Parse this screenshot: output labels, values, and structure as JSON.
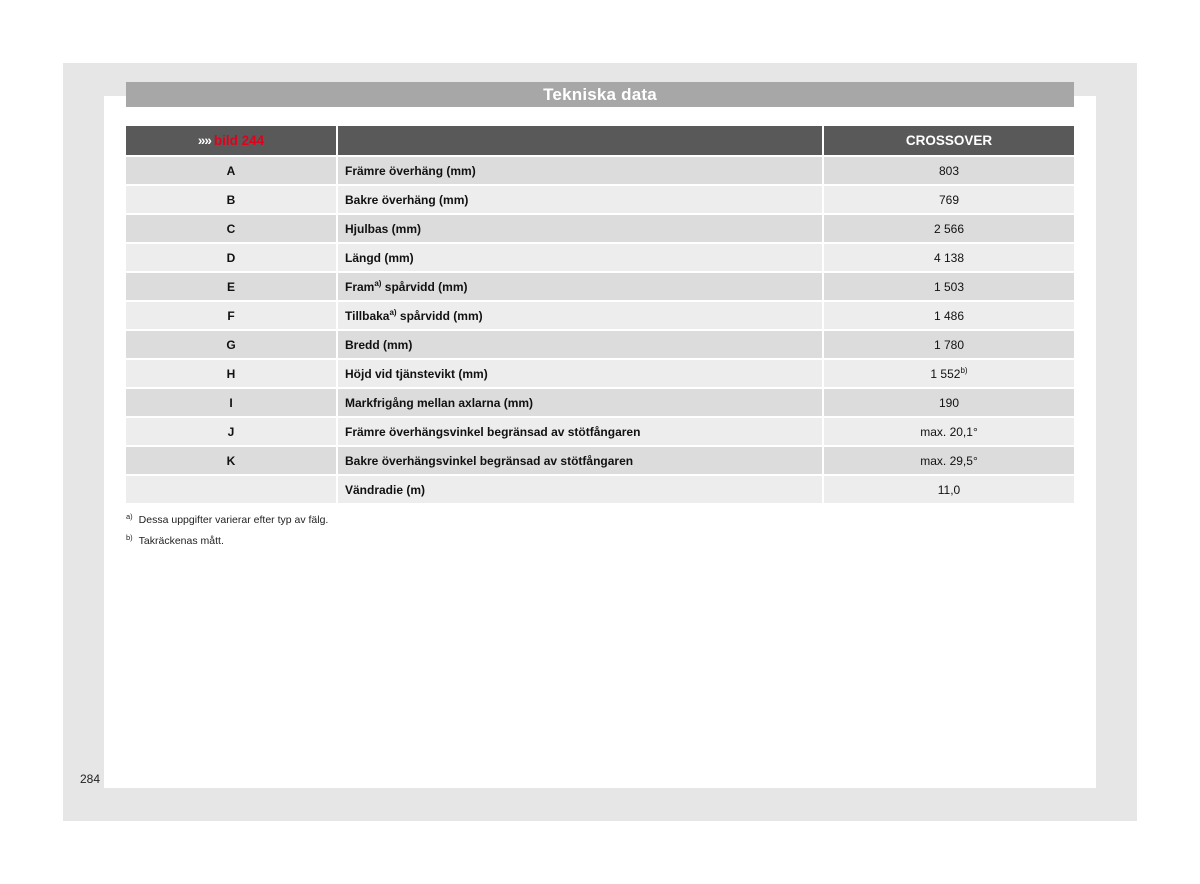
{
  "section_title": "Tekniska data",
  "table": {
    "header": {
      "ref_arrows": "»»",
      "ref_link": "bild 244",
      "label_col": "",
      "value_col": "CROSSOVER"
    },
    "rows": [
      {
        "letter": "A",
        "label": "Främre överhäng (mm)",
        "label_sup": "",
        "label_suffix": "",
        "value": "803",
        "value_sup": ""
      },
      {
        "letter": "B",
        "label": "Bakre överhäng (mm)",
        "label_sup": "",
        "label_suffix": "",
        "value": "769",
        "value_sup": ""
      },
      {
        "letter": "C",
        "label": "Hjulbas (mm)",
        "label_sup": "",
        "label_suffix": "",
        "value": "2 566",
        "value_sup": ""
      },
      {
        "letter": "D",
        "label": "Längd (mm)",
        "label_sup": "",
        "label_suffix": "",
        "value": "4 138",
        "value_sup": ""
      },
      {
        "letter": "E",
        "label": "Fram",
        "label_sup": "a)",
        "label_suffix": " spårvidd (mm)",
        "value": "1 503",
        "value_sup": ""
      },
      {
        "letter": "F",
        "label": "Tillbaka",
        "label_sup": "a)",
        "label_suffix": " spårvidd (mm)",
        "value": "1 486",
        "value_sup": ""
      },
      {
        "letter": "G",
        "label": "Bredd (mm)",
        "label_sup": "",
        "label_suffix": "",
        "value": "1 780",
        "value_sup": ""
      },
      {
        "letter": "H",
        "label": "Höjd vid tjänstevikt (mm)",
        "label_sup": "",
        "label_suffix": "",
        "value": "1 552",
        "value_sup": "b)"
      },
      {
        "letter": "I",
        "label": "Markfrigång mellan axlarna (mm)",
        "label_sup": "",
        "label_suffix": "",
        "value": "190",
        "value_sup": ""
      },
      {
        "letter": "J",
        "label": "Främre överhängsvinkel begränsad av stötfångaren",
        "label_sup": "",
        "label_suffix": "",
        "value": "max. 20,1°",
        "value_sup": ""
      },
      {
        "letter": "K",
        "label": "Bakre överhängsvinkel begränsad av stötfångaren",
        "label_sup": "",
        "label_suffix": "",
        "value": "max. 29,5°",
        "value_sup": ""
      },
      {
        "letter": "",
        "label": "Vändradie (m)",
        "label_sup": "",
        "label_suffix": "",
        "value": "11,0",
        "value_sup": ""
      }
    ]
  },
  "footnotes": [
    {
      "mark": "a)",
      "text": "Dessa uppgifter varierar efter typ av fälg."
    },
    {
      "mark": "b)",
      "text": "Takräckenas mått."
    }
  ],
  "page_number": "284"
}
